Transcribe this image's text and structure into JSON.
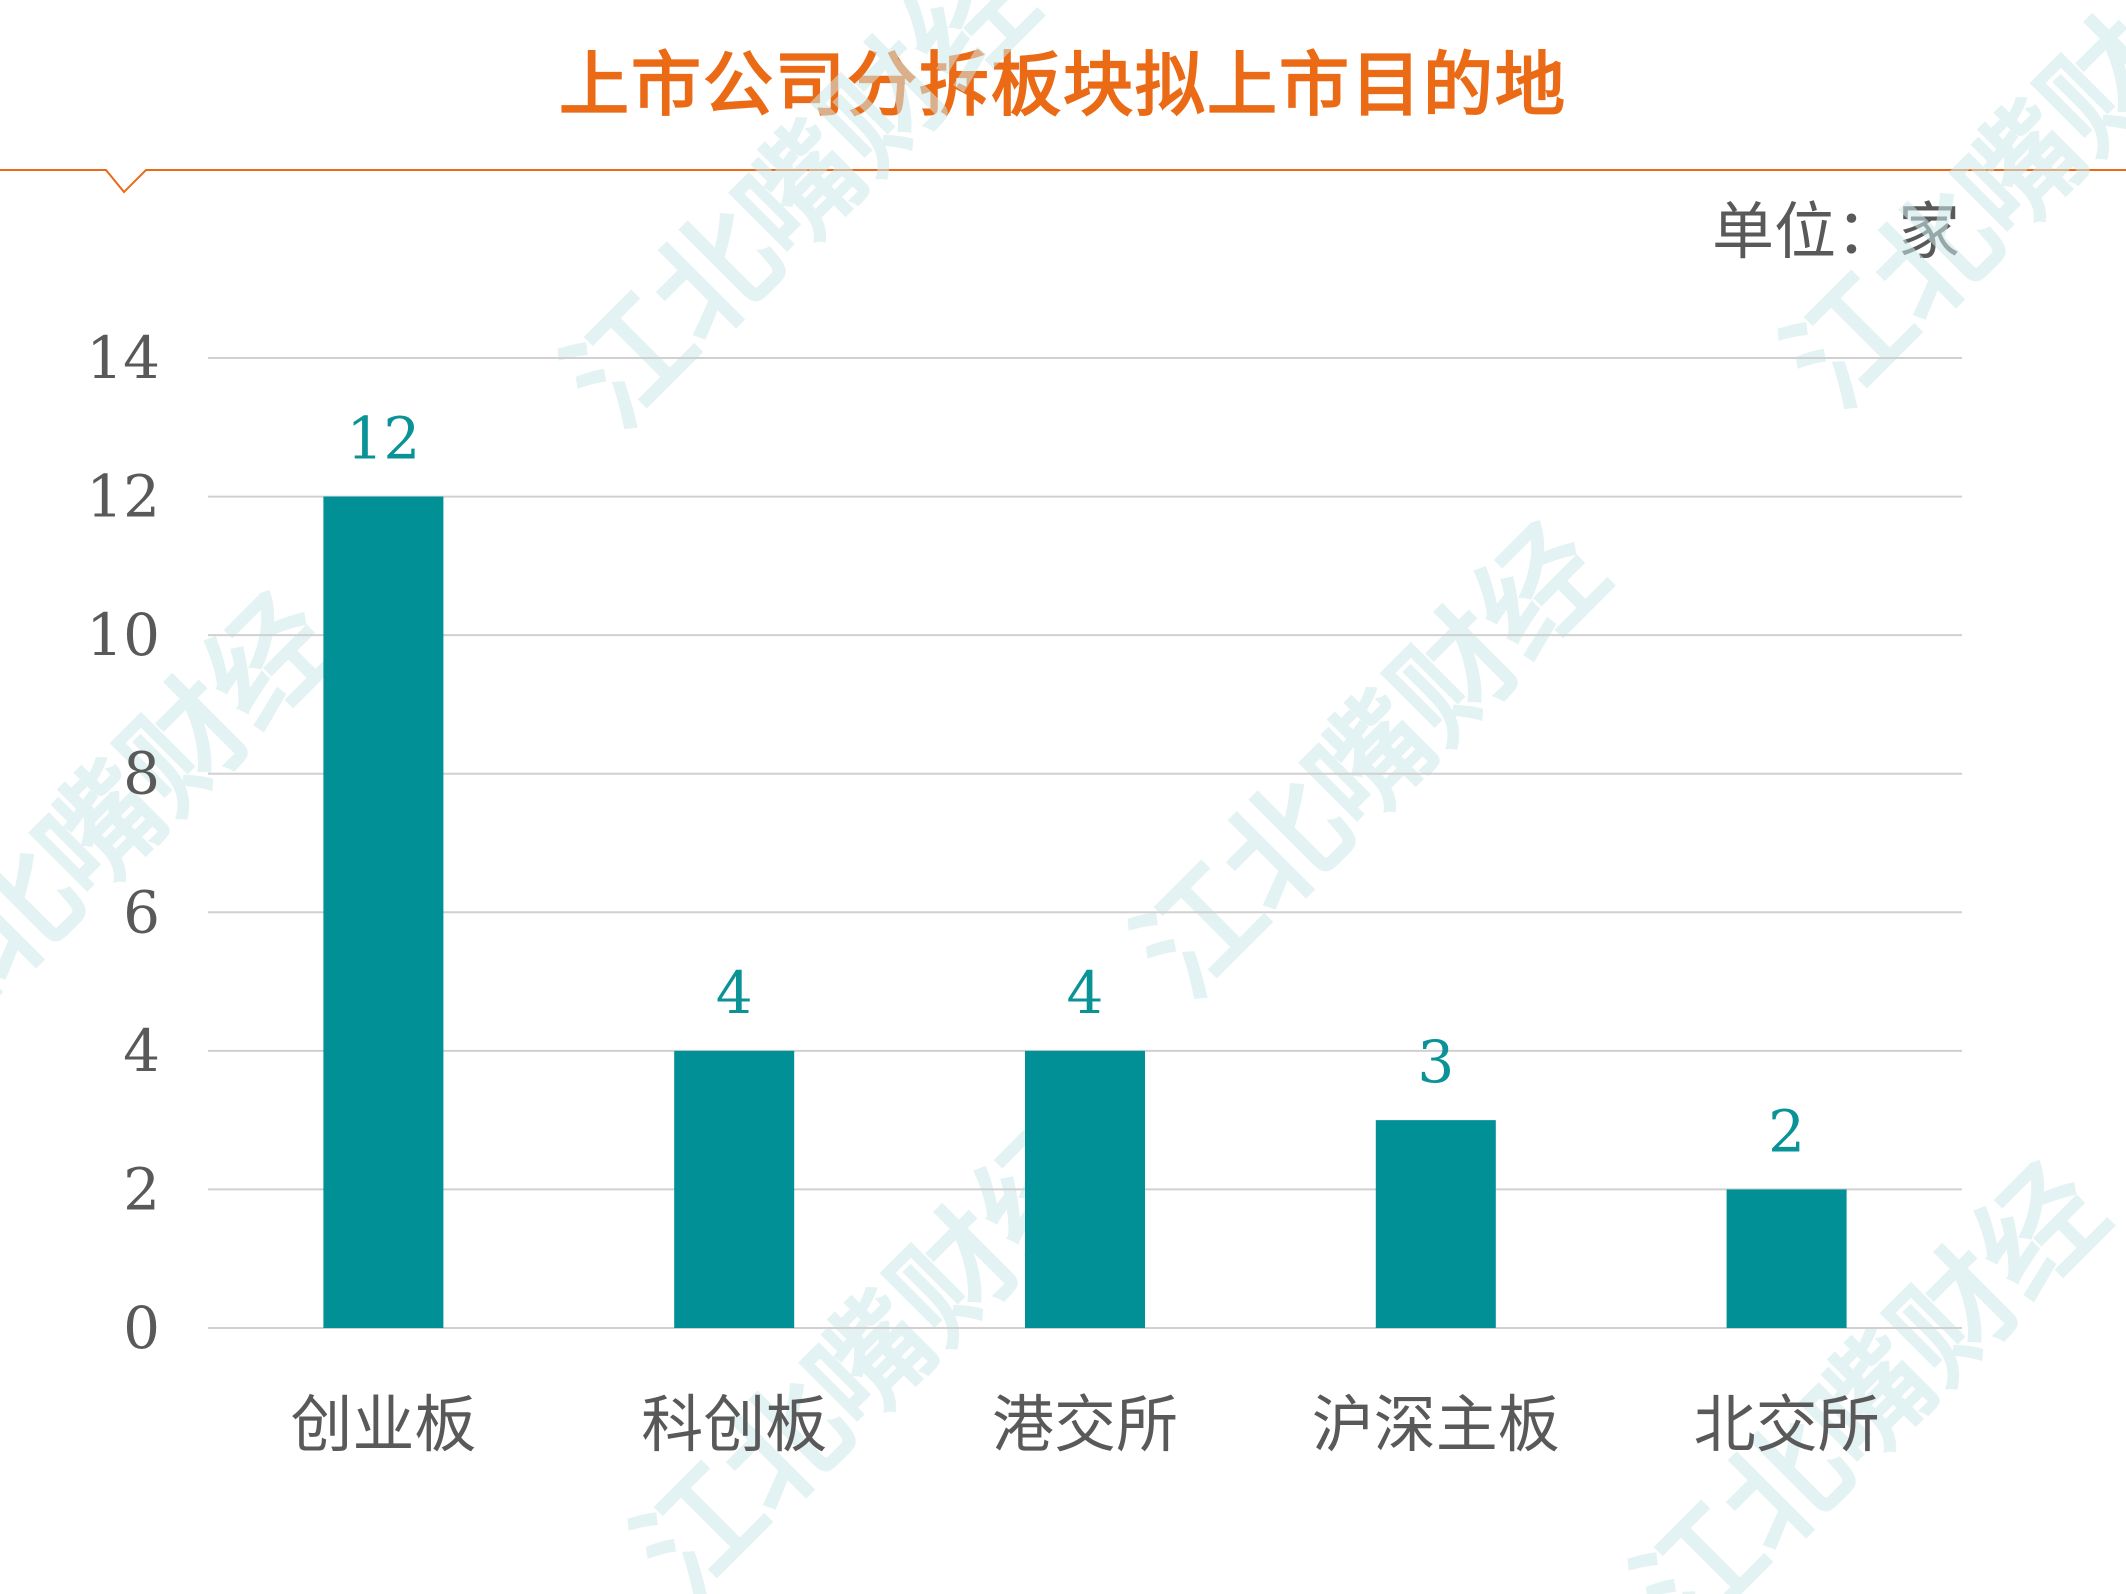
{
  "title": "上市公司分拆板块拟上市目的地",
  "unit_label": "单位：家",
  "watermark_text": "江北嘴财经",
  "colors": {
    "title": "#ea6a15",
    "bar": "#009096",
    "data_label": "#0a9397",
    "axis_text": "#595959",
    "gridline": "#d0d0d0"
  },
  "chart_data": {
    "type": "bar",
    "categories": [
      "创业板",
      "科创板",
      "港交所",
      "沪深主板",
      "北交所"
    ],
    "values": [
      12,
      4,
      4,
      3,
      2
    ],
    "data_labels": [
      "12",
      "4",
      "4",
      "3",
      "2"
    ],
    "title": "上市公司分拆板块拟上市目的地",
    "xlabel": "",
    "ylabel": "",
    "ylim": [
      0,
      14
    ],
    "yticks": [
      0,
      2,
      4,
      6,
      8,
      10,
      12,
      14
    ],
    "grid": true,
    "legend": "none"
  }
}
